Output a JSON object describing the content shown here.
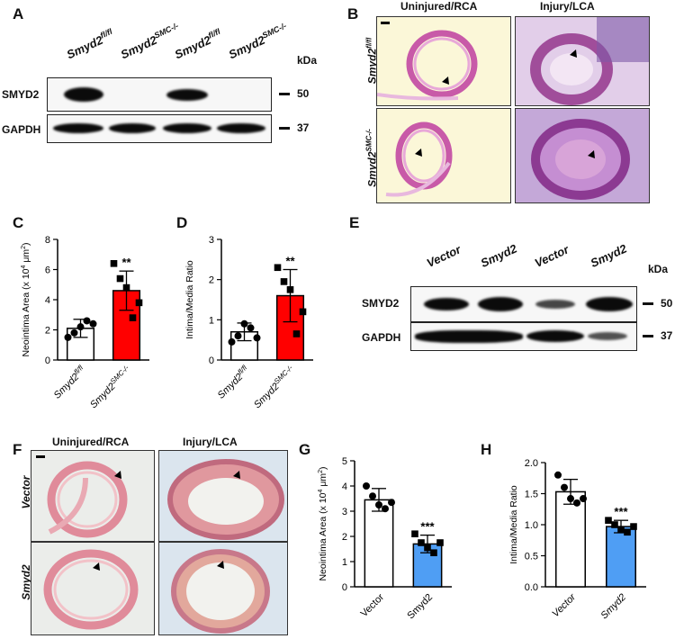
{
  "panels": {
    "A": {
      "letter": "A",
      "lanes": [
        "Smyd2",
        "Smyd2",
        "Smyd2",
        "Smyd2"
      ],
      "lane_sups": [
        "fl/fl",
        "SMC-/-",
        "fl/fl",
        "SMC-/-"
      ],
      "kda": "kDa",
      "rows": [
        {
          "label": "SMYD2",
          "mw": "50"
        },
        {
          "label": "GAPDH",
          "mw": "37"
        }
      ]
    },
    "B": {
      "letter": "B",
      "col_titles": [
        "Uninjured/RCA",
        "Injury/LCA"
      ],
      "row_titles": [
        "Smyd2",
        "Smyd2"
      ],
      "row_sups": [
        "fl/fl",
        "SMC-/-"
      ]
    },
    "E": {
      "letter": "E",
      "lanes": [
        "Vector",
        "Smyd2",
        "Vector",
        "Smyd2"
      ],
      "kda": "kDa",
      "rows": [
        {
          "label": "SMYD2",
          "mw": "50"
        },
        {
          "label": "GAPDH",
          "mw": "37"
        }
      ]
    },
    "F": {
      "letter": "F",
      "col_titles": [
        "Uninjured/RCA",
        "Injury/LCA"
      ],
      "row_titles": [
        "Vector",
        "Smyd2"
      ]
    }
  },
  "chart_data": [
    {
      "id": "C",
      "letter": "C",
      "type": "bar",
      "ylabel": "Neointima Area (x 10",
      "ylabel_sup": "4",
      "ylabel_unit": " μm",
      "ylabel_sup2": "2",
      "ylabel_close": ")",
      "ylim": [
        0,
        8
      ],
      "yticks": [
        0,
        2,
        4,
        6,
        8
      ],
      "ytick_labels": [
        "0",
        "2",
        "4",
        "6",
        "8"
      ],
      "categories": [
        "Smyd2",
        "Smyd2"
      ],
      "category_sups": [
        "fl/fl",
        "SMC-/-"
      ],
      "values": [
        2.1,
        4.6
      ],
      "errors": [
        0.6,
        1.3
      ],
      "colors": [
        "#ffffff",
        "#ff0000"
      ],
      "points": [
        [
          1.5,
          1.8,
          2.2,
          2.6,
          2.4
        ],
        [
          6.4,
          5.4,
          4.8,
          2.8,
          3.8
        ]
      ],
      "markers": [
        "circle",
        "square"
      ],
      "annotations": [
        "",
        "**"
      ],
      "italic_categories": true
    },
    {
      "id": "D",
      "letter": "D",
      "type": "bar",
      "ylabel": "Intima/Media Ratio",
      "ylim": [
        0,
        3
      ],
      "yticks": [
        0,
        1,
        2,
        3
      ],
      "ytick_labels": [
        "0",
        "1",
        "2",
        "3"
      ],
      "categories": [
        "Smyd2",
        "Smyd2"
      ],
      "category_sups": [
        "fl/fl",
        "SMC-/-"
      ],
      "values": [
        0.7,
        1.6
      ],
      "errors": [
        0.22,
        0.65
      ],
      "colors": [
        "#ffffff",
        "#ff0000"
      ],
      "points": [
        [
          0.45,
          0.6,
          0.9,
          0.8,
          0.55
        ],
        [
          2.3,
          1.95,
          1.75,
          0.65,
          1.2
        ]
      ],
      "markers": [
        "circle",
        "square"
      ],
      "annotations": [
        "",
        "**"
      ],
      "italic_categories": true
    },
    {
      "id": "G",
      "letter": "G",
      "type": "bar",
      "ylabel": "Neointima Area (x 10",
      "ylabel_sup": "4",
      "ylabel_unit": " μm",
      "ylabel_sup2": "2",
      "ylabel_close": ")",
      "ylim": [
        0,
        5
      ],
      "yticks": [
        0,
        1,
        2,
        3,
        4,
        5
      ],
      "ytick_labels": [
        "0",
        "1",
        "2",
        "3",
        "4",
        "5"
      ],
      "categories": [
        "Vector",
        "Smyd2"
      ],
      "category_sups": [
        "",
        ""
      ],
      "values": [
        3.45,
        1.7
      ],
      "errors": [
        0.45,
        0.35
      ],
      "colors": [
        "#ffffff",
        "#4f9ef4"
      ],
      "points": [
        [
          4.0,
          3.6,
          3.25,
          3.1,
          3.35
        ],
        [
          2.1,
          1.75,
          1.55,
          1.35,
          1.75
        ]
      ],
      "markers": [
        "circle",
        "square"
      ],
      "annotations": [
        "",
        "***"
      ],
      "italic_categories": false
    },
    {
      "id": "H",
      "letter": "H",
      "type": "bar",
      "ylabel": "Intima/Media Ratio",
      "ylim": [
        0,
        2.0
      ],
      "yticks": [
        0,
        0.5,
        1.0,
        1.5,
        2.0
      ],
      "ytick_labels": [
        "0.0",
        "0.5",
        "1.0",
        "1.5",
        "2.0"
      ],
      "categories": [
        "Vector",
        "Smyd2"
      ],
      "category_sups": [
        "",
        ""
      ],
      "values": [
        1.53,
        0.97
      ],
      "errors": [
        0.2,
        0.1
      ],
      "colors": [
        "#ffffff",
        "#4f9ef4"
      ],
      "points": [
        [
          1.8,
          1.6,
          1.42,
          1.35,
          1.42
        ],
        [
          1.07,
          1.0,
          0.92,
          0.88,
          0.97
        ]
      ],
      "markers": [
        "circle",
        "square"
      ],
      "annotations": [
        "",
        "***"
      ],
      "italic_categories": true
    }
  ]
}
